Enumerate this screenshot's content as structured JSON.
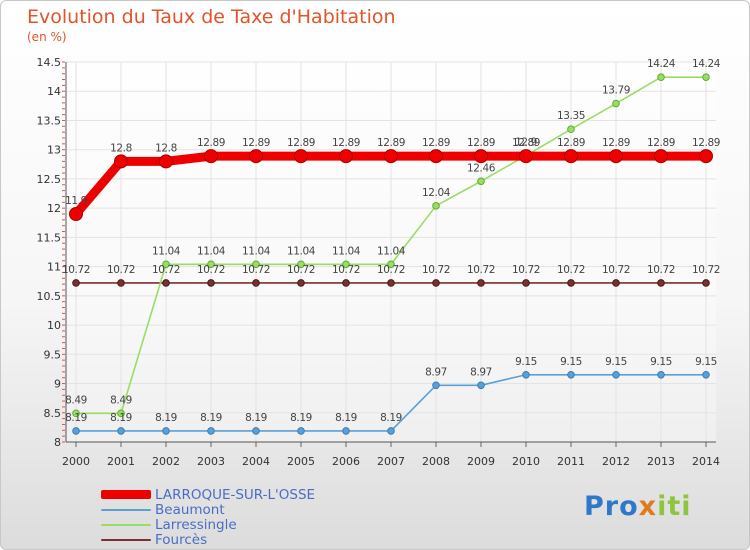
{
  "title": "Evolution du Taux de Taxe d'Habitation",
  "unit": "(en %)",
  "logo": {
    "part1": "Pro",
    "part2": "x",
    "part3": "iti"
  },
  "chart_data": {
    "type": "line",
    "title": "Evolution du Taux de Taxe d'Habitation",
    "ylabel": "(en %)",
    "xlabel": "",
    "x": [
      "2000",
      "2001",
      "2002",
      "2003",
      "2004",
      "2005",
      "2006",
      "2007",
      "2008",
      "2009",
      "2010",
      "2011",
      "2012",
      "2013",
      "2014"
    ],
    "ylim": [
      8,
      14.5
    ],
    "yticks": [
      "8",
      "8.5",
      "9",
      "9.5",
      "10",
      "10.5",
      "11",
      "11.5",
      "12",
      "12.5",
      "13",
      "13.5",
      "14",
      "14.5"
    ],
    "grid": true,
    "legend_position": "bottom-left",
    "series": [
      {
        "name": "LARROQUE-SUR-L'OSSE",
        "color": "#ee0000",
        "values": [
          11.9,
          12.8,
          12.8,
          12.89,
          12.89,
          12.89,
          12.89,
          12.89,
          12.89,
          12.89,
          12.89,
          12.89,
          12.89,
          12.89,
          12.89
        ],
        "labels": [
          "11.9",
          "12.8",
          "12.8",
          "12.89",
          "12.89",
          "12.89",
          "12.89",
          "12.89",
          "12.89",
          "12.89",
          "12.89",
          "12.89",
          "12.89",
          "12.89",
          "12.89"
        ]
      },
      {
        "name": "Beaumont",
        "color": "#5aa0d8",
        "values": [
          8.19,
          8.19,
          8.19,
          8.19,
          8.19,
          8.19,
          8.19,
          8.19,
          8.97,
          8.97,
          9.15,
          9.15,
          9.15,
          9.15,
          9.15
        ],
        "labels": [
          "8.19",
          "8.19",
          "8.19",
          "8.19",
          "8.19",
          "8.19",
          "8.19",
          "8.19",
          "8.97",
          "8.97",
          "9.15",
          "9.15",
          "9.15",
          "9.15",
          "9.15"
        ]
      },
      {
        "name": "Larressingle",
        "color": "#99dd66",
        "values": [
          8.49,
          8.49,
          11.04,
          11.04,
          11.04,
          11.04,
          11.04,
          11.04,
          12.04,
          12.46,
          12.9,
          13.35,
          13.79,
          14.24,
          14.24
        ],
        "labels": [
          "8.49",
          "8.49",
          "11.04",
          "11.04",
          "11.04",
          "11.04",
          "11.04",
          "11.04",
          "12.04",
          "12.46",
          "12.9",
          "13.35",
          "13.79",
          "14.24",
          "14.24"
        ]
      },
      {
        "name": "Fourcès",
        "color": "#7a3030",
        "values": [
          10.72,
          10.72,
          10.72,
          10.72,
          10.72,
          10.72,
          10.72,
          10.72,
          10.72,
          10.72,
          10.72,
          10.72,
          10.72,
          10.72,
          10.72
        ],
        "labels": [
          "10.72",
          "10.72",
          "10.72",
          "10.72",
          "10.72",
          "10.72",
          "10.72",
          "10.72",
          "10.72",
          "10.72",
          "10.72",
          "10.72",
          "10.72",
          "10.72",
          "10.72"
        ]
      }
    ]
  }
}
